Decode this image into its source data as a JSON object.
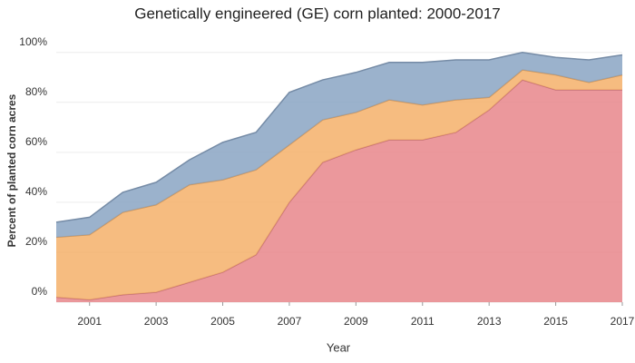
{
  "chart_data": {
    "type": "stacked_area",
    "title": "Genetically engineered (GE) corn planted: 2000-2017",
    "x_label": "Year",
    "y_label": "Percent of planted corn acres",
    "x": [
      2000,
      2001,
      2002,
      2003,
      2004,
      2005,
      2006,
      2007,
      2008,
      2009,
      2010,
      2011,
      2012,
      2013,
      2014,
      2015,
      2016,
      2017
    ],
    "series": [
      {
        "color": "#e8868b",
        "values": [
          2,
          1,
          3,
          4,
          8,
          12,
          19,
          40,
          56,
          61,
          65,
          65,
          68,
          77,
          89,
          85,
          85,
          85
        ]
      },
      {
        "color": "#f5b06a",
        "values": [
          24,
          26,
          33,
          35,
          39,
          37,
          34,
          23,
          17,
          15,
          16,
          14,
          13,
          5,
          4,
          6,
          3,
          6
        ]
      },
      {
        "color": "#8aa4c3",
        "values": [
          6,
          7,
          8,
          9,
          10,
          15,
          15,
          21,
          16,
          16,
          15,
          17,
          16,
          15,
          7,
          7,
          9,
          8
        ]
      }
    ],
    "xlim": [
      2000,
      2017
    ],
    "xticks": [
      2001,
      2003,
      2005,
      2007,
      2009,
      2011,
      2013,
      2015,
      2017
    ],
    "ylim": [
      0,
      105
    ],
    "yticks": [
      {
        "value": 0,
        "label": "0%"
      },
      {
        "value": 20,
        "label": "20%"
      },
      {
        "value": 40,
        "label": "40%"
      },
      {
        "value": 60,
        "label": "60%"
      },
      {
        "value": 80,
        "label": "80%"
      },
      {
        "value": 100,
        "label": "100%"
      }
    ],
    "grid": true
  }
}
